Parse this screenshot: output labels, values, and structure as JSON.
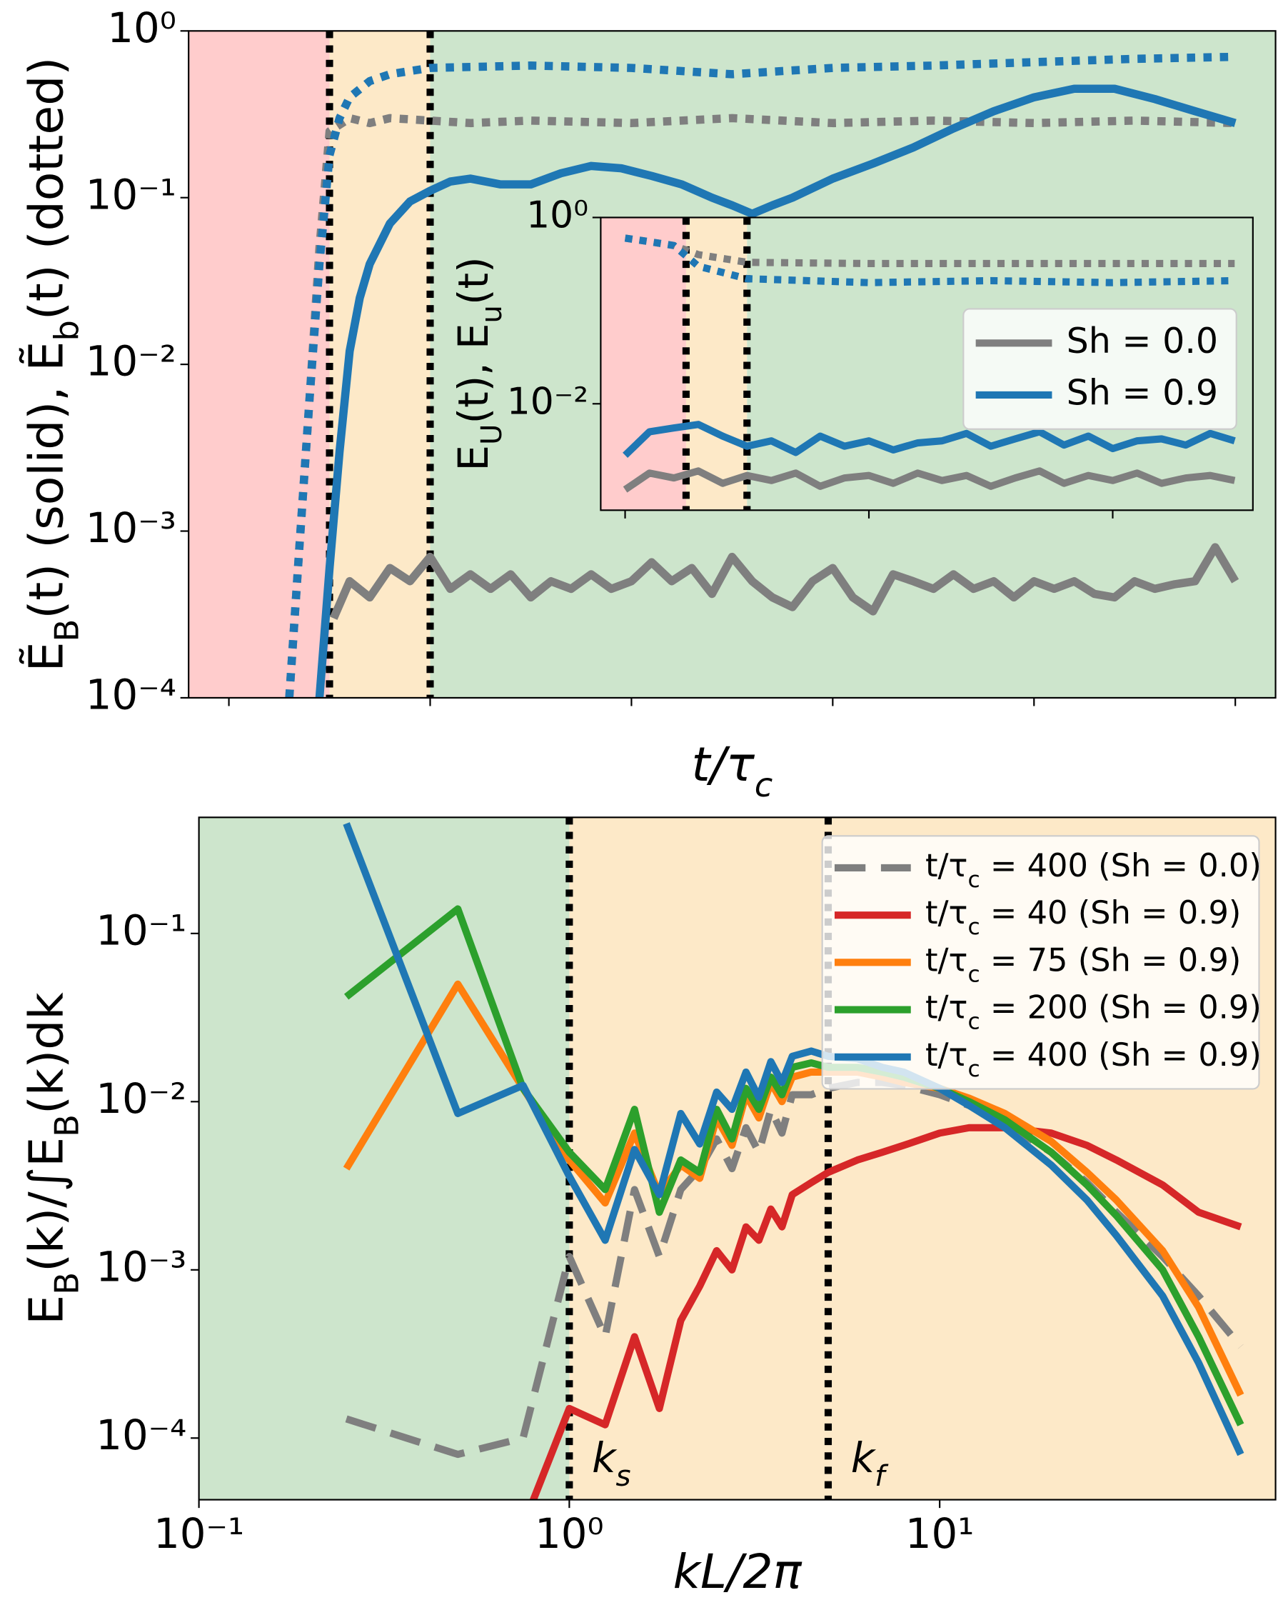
{
  "chart_data": [
    {
      "type": "line",
      "xlim": [
        -20,
        520
      ],
      "ylim": [
        0.0001,
        1
      ],
      "xscale": "linear",
      "yscale": "log",
      "xticks": [
        0,
        100,
        200,
        300,
        400,
        500
      ],
      "yticks": [
        {
          "value": 1,
          "label": "10⁰"
        },
        {
          "value": 0.1,
          "label": "10⁻¹"
        },
        {
          "value": 0.01,
          "label": "10⁻²"
        },
        {
          "value": 0.001,
          "label": "10⁻³"
        },
        {
          "value": 0.0001,
          "label": "10⁻⁴"
        }
      ],
      "xlabel": [
        "t/τ",
        "c"
      ],
      "ylabel": [
        "Ẽ",
        "B",
        "(t) (solid), Ẽ",
        "b",
        "(t)  (dotted)"
      ],
      "shade_bounds": [
        50,
        100
      ],
      "shade_colors": [
        "#ffcccc",
        "#fde9c8",
        "#cde5cc"
      ],
      "vlines": [
        50,
        100
      ],
      "series": [
        {
          "color": "#7f7f7f",
          "style": "dotted",
          "x": [
            30,
            35,
            40,
            45,
            50,
            60,
            70,
            80,
            100,
            120,
            150,
            200,
            250,
            300,
            350,
            400,
            450,
            500
          ],
          "values": [
            0.0001,
            0.0008,
            0.006,
            0.05,
            0.25,
            0.3,
            0.28,
            0.3,
            0.29,
            0.28,
            0.29,
            0.28,
            0.3,
            0.28,
            0.29,
            0.28,
            0.29,
            0.28
          ]
        },
        {
          "color": "#1f77b4",
          "style": "dotted",
          "x": [
            30,
            35,
            40,
            45,
            50,
            55,
            60,
            70,
            80,
            100,
            150,
            200,
            250,
            300,
            350,
            400,
            450,
            500
          ],
          "values": [
            0.0001,
            0.0008,
            0.006,
            0.04,
            0.18,
            0.3,
            0.4,
            0.5,
            0.55,
            0.6,
            0.62,
            0.6,
            0.55,
            0.6,
            0.62,
            0.65,
            0.68,
            0.7
          ]
        },
        {
          "color": "#7f7f7f",
          "style": "solid",
          "x": [
            52,
            60,
            70,
            80,
            90,
            100,
            110,
            120,
            130,
            140,
            150,
            160,
            170,
            180,
            190,
            200,
            210,
            220,
            230,
            240,
            250,
            260,
            270,
            280,
            290,
            300,
            310,
            320,
            330,
            340,
            350,
            360,
            370,
            380,
            390,
            400,
            410,
            420,
            430,
            440,
            450,
            460,
            470,
            480,
            490,
            500
          ],
          "values": [
            0.0003,
            0.0005,
            0.0004,
            0.0006,
            0.0005,
            0.0007,
            0.00045,
            0.00055,
            0.00045,
            0.00055,
            0.0004,
            0.0005,
            0.00045,
            0.00055,
            0.00045,
            0.0005,
            0.00065,
            0.0005,
            0.0006,
            0.00042,
            0.0007,
            0.0005,
            0.0004,
            0.00035,
            0.0005,
            0.0006,
            0.0004,
            0.00033,
            0.00055,
            0.0005,
            0.00045,
            0.00055,
            0.00045,
            0.0005,
            0.0004,
            0.0005,
            0.00045,
            0.0005,
            0.00042,
            0.0004,
            0.0005,
            0.00045,
            0.00048,
            0.0005,
            0.0008,
            0.0005
          ]
        },
        {
          "color": "#1f77b4",
          "style": "solid",
          "x": [
            45,
            50,
            55,
            60,
            65,
            70,
            80,
            90,
            100,
            110,
            120,
            135,
            150,
            165,
            180,
            195,
            210,
            225,
            240,
            250,
            260,
            270,
            280,
            300,
            320,
            340,
            360,
            380,
            400,
            420,
            440,
            460,
            480,
            500
          ],
          "values": [
            0.0001,
            0.0006,
            0.003,
            0.012,
            0.025,
            0.04,
            0.07,
            0.095,
            0.11,
            0.125,
            0.13,
            0.12,
            0.12,
            0.14,
            0.155,
            0.15,
            0.135,
            0.12,
            0.1,
            0.09,
            0.08,
            0.09,
            0.1,
            0.13,
            0.16,
            0.2,
            0.26,
            0.33,
            0.4,
            0.45,
            0.45,
            0.39,
            0.33,
            0.28
          ]
        }
      ]
    },
    {
      "type": "line",
      "xlim": [
        -20,
        515
      ],
      "ylim": [
        0.00072,
        1
      ],
      "xscale": "linear",
      "yscale": "log",
      "xticks": [
        0,
        200,
        400
      ],
      "yticks": [
        {
          "value": 1,
          "label": "10⁰"
        },
        {
          "value": 0.01,
          "label": "10⁻²"
        }
      ],
      "ylabel": [
        "E",
        "U",
        "(t), E",
        "u",
        "(t)"
      ],
      "shade_bounds": [
        50,
        100
      ],
      "shade_colors": [
        "#ffcccc",
        "#fde9c8",
        "#cde5cc"
      ],
      "vlines": [
        50,
        100
      ],
      "legend": "center right",
      "series": [
        {
          "color": "#7f7f7f",
          "style": "dotted",
          "x": [
            0,
            20,
            40,
            60,
            100,
            200,
            300,
            400,
            500
          ],
          "values": [
            0.6,
            0.55,
            0.5,
            0.4,
            0.33,
            0.32,
            0.32,
            0.32,
            0.32
          ]
        },
        {
          "color": "#1f77b4",
          "style": "dotted",
          "x": [
            0,
            20,
            40,
            60,
            100,
            200,
            300,
            400,
            500
          ],
          "values": [
            0.6,
            0.55,
            0.5,
            0.3,
            0.22,
            0.2,
            0.21,
            0.2,
            0.21
          ]
        },
        {
          "name": "Sh = 0.0",
          "color": "#7f7f7f",
          "style": "solid",
          "x": [
            0,
            20,
            40,
            60,
            80,
            100,
            120,
            140,
            160,
            180,
            200,
            220,
            240,
            260,
            280,
            300,
            320,
            340,
            360,
            380,
            400,
            420,
            440,
            460,
            480,
            500
          ],
          "values": [
            0.0012,
            0.0018,
            0.0016,
            0.0019,
            0.0014,
            0.0017,
            0.0015,
            0.0018,
            0.0013,
            0.0016,
            0.0017,
            0.0014,
            0.0018,
            0.0015,
            0.0017,
            0.0013,
            0.0016,
            0.0019,
            0.0014,
            0.0017,
            0.0015,
            0.0018,
            0.0014,
            0.0016,
            0.0017,
            0.0015
          ]
        },
        {
          "name": "Sh = 0.9",
          "color": "#1f77b4",
          "style": "solid",
          "x": [
            0,
            20,
            40,
            60,
            80,
            100,
            120,
            140,
            160,
            180,
            200,
            220,
            240,
            260,
            280,
            300,
            320,
            340,
            360,
            380,
            400,
            420,
            440,
            460,
            480,
            500
          ],
          "values": [
            0.0028,
            0.005,
            0.0055,
            0.006,
            0.0045,
            0.0035,
            0.004,
            0.003,
            0.0045,
            0.0035,
            0.004,
            0.0032,
            0.0038,
            0.004,
            0.0048,
            0.0035,
            0.0042,
            0.005,
            0.0036,
            0.0045,
            0.0033,
            0.004,
            0.0042,
            0.0036,
            0.0048,
            0.004
          ]
        }
      ]
    },
    {
      "type": "line",
      "xlim": [
        0.1,
        80.7
      ],
      "ylim": [
        4.3e-05,
        0.49
      ],
      "xscale": "log",
      "yscale": "log",
      "xticks": [
        {
          "value": 0.1,
          "label": "10⁻¹"
        },
        {
          "value": 1,
          "label": "10⁰"
        },
        {
          "value": 10,
          "label": "10¹"
        }
      ],
      "yticks": [
        {
          "value": 0.1,
          "label": "10⁻¹"
        },
        {
          "value": 0.01,
          "label": "10⁻²"
        },
        {
          "value": 0.001,
          "label": "10⁻³"
        },
        {
          "value": 0.0001,
          "label": "10⁻⁴"
        }
      ],
      "xlabel": [
        "kL/2π"
      ],
      "ylabel": [
        "E",
        "B",
        "(k)/∫E",
        "B",
        "(k)dk"
      ],
      "shade_bounds": [
        1
      ],
      "shade_colors": [
        "#cde5cc",
        "#fde9c8"
      ],
      "vlines": [
        1,
        5
      ],
      "vline_labels": [
        [
          "k",
          "s"
        ],
        [
          "k",
          "f"
        ]
      ],
      "legend": "upper right",
      "x": [
        0.25,
        0.5,
        0.75,
        1,
        1.25,
        1.5,
        1.75,
        2,
        2.25,
        2.5,
        2.75,
        3,
        3.25,
        3.5,
        3.75,
        4,
        4.5,
        5,
        6,
        7,
        8,
        10,
        12,
        15,
        20,
        25,
        30,
        40,
        50,
        65
      ],
      "series": [
        {
          "name": [
            "t/τ",
            "c",
            " = 400 (Sh = 0.0)"
          ],
          "color": "#7f7f7f",
          "style": "dashed",
          "values": [
            0.00013,
            8e-05,
            0.0001,
            0.0012,
            0.0004,
            0.003,
            0.0012,
            0.003,
            0.004,
            0.006,
            0.004,
            0.007,
            0.005,
            0.009,
            0.0065,
            0.011,
            0.011,
            0.012,
            0.013,
            0.013,
            0.0125,
            0.011,
            0.0095,
            0.0075,
            0.005,
            0.0033,
            0.0022,
            0.0012,
            0.0007,
            0.00035
          ]
        },
        {
          "name": [
            "t/τ",
            "c",
            " = 40 (Sh = 0.9)"
          ],
          "color": "#d62728",
          "style": "solid",
          "values": [
            null,
            null,
            3e-05,
            0.00015,
            0.00012,
            0.0004,
            0.00015,
            0.0005,
            0.0008,
            0.0013,
            0.001,
            0.0018,
            0.0015,
            0.0023,
            0.0018,
            0.0028,
            0.0033,
            0.0038,
            0.0045,
            0.005,
            0.0055,
            0.0065,
            0.007,
            0.007,
            0.0065,
            0.0055,
            0.0045,
            0.0032,
            0.0022,
            0.0018
          ]
        },
        {
          "name": [
            "t/τ",
            "c",
            " = 75 (Sh = 0.9)"
          ],
          "color": "#ff7f0e",
          "style": "solid",
          "values": [
            0.004,
            0.05,
            0.012,
            0.0045,
            0.0025,
            0.0065,
            0.0028,
            0.0042,
            0.0035,
            0.008,
            0.0055,
            0.011,
            0.008,
            0.013,
            0.01,
            0.014,
            0.015,
            0.015,
            0.015,
            0.014,
            0.013,
            0.012,
            0.0105,
            0.0085,
            0.0058,
            0.0038,
            0.0026,
            0.0013,
            0.0006,
            0.00018
          ]
        },
        {
          "name": [
            "t/τ",
            "c",
            " = 200 (Sh = 0.9)"
          ],
          "color": "#2ca02c",
          "style": "solid",
          "values": [
            0.042,
            0.14,
            0.012,
            0.005,
            0.003,
            0.009,
            0.0022,
            0.0045,
            0.0038,
            0.009,
            0.006,
            0.012,
            0.009,
            0.014,
            0.011,
            0.016,
            0.017,
            0.016,
            0.016,
            0.015,
            0.014,
            0.012,
            0.01,
            0.0078,
            0.005,
            0.0032,
            0.0021,
            0.001,
            0.0004,
            0.00012
          ]
        },
        {
          "name": [
            "t/τ",
            "c",
            " = 400 (Sh = 0.9)"
          ],
          "color": "#1f77b4",
          "style": "solid",
          "values": [
            0.45,
            0.0085,
            0.0125,
            0.0036,
            0.0015,
            0.0052,
            0.0028,
            0.0085,
            0.0056,
            0.0114,
            0.009,
            0.015,
            0.0106,
            0.0173,
            0.013,
            0.0186,
            0.02,
            0.0186,
            0.018,
            0.016,
            0.015,
            0.012,
            0.0095,
            0.007,
            0.0042,
            0.0026,
            0.0016,
            0.0007,
            0.00028,
            8e-05
          ]
        }
      ]
    }
  ]
}
